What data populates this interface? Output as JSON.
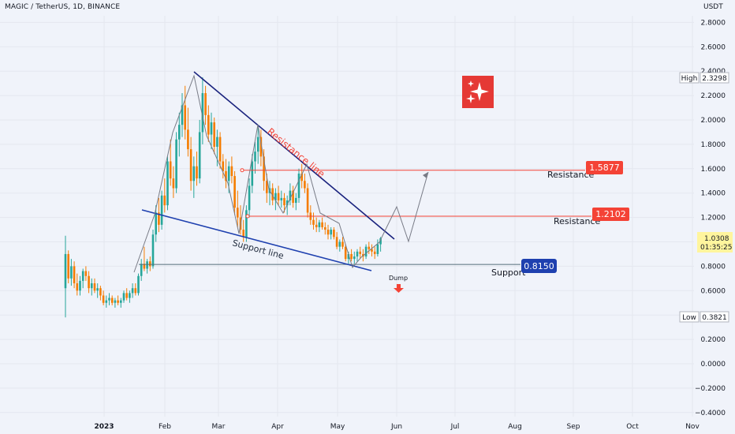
{
  "header": {
    "title": "MAGIC / TetherUS, 1D, BINANCE",
    "currency": "USDT"
  },
  "colors": {
    "background": "#f0f3fa",
    "up": "#26a69a",
    "down": "#f57c00",
    "resistance": "#f44336",
    "support": "#1e40af",
    "trendline": "#1a237e",
    "logo": "#e53935"
  },
  "icons": {
    "logo": "sparkle-icon",
    "dump_arrow": "arrow-down-icon"
  },
  "chart_data": {
    "type": "candlestick",
    "ylim": [
      -0.4,
      2.9
    ],
    "y_ticks": [
      "2.8000",
      "2.6000",
      "2.4000",
      "2.2000",
      "2.0000",
      "1.8000",
      "1.6000",
      "1.4000",
      "1.2000",
      "1.0000",
      "0.8000",
      "0.6000",
      "0.4000",
      "0.2000",
      "0.0000",
      "−0.2000",
      "−0.4000"
    ],
    "x_ticks": [
      "2023",
      "Feb",
      "Mar",
      "Apr",
      "May",
      "Jun",
      "Jul",
      "Aug",
      "Sep",
      "Oct",
      "Nov"
    ],
    "price_markers": {
      "high": {
        "label": "High",
        "value": "2.3298"
      },
      "low": {
        "label": "Low",
        "value": "0.3821"
      },
      "last": {
        "value": "1.0308",
        "countdown": "01:35:25"
      }
    },
    "levels": [
      {
        "name": "Resistance",
        "value": 1.5877,
        "label": "1.5877"
      },
      {
        "name": "Resistance",
        "value": 1.2102,
        "label": "1.2102"
      },
      {
        "name": "Support",
        "value": 0.815,
        "label": "0.8150"
      }
    ],
    "annotations": {
      "resistance_line": "Resistance line",
      "support_line": "Support line",
      "dump": "Dump"
    },
    "ohlc": [
      [
        0.62,
        1.05,
        0.38,
        0.9
      ],
      [
        0.9,
        0.93,
        0.66,
        0.7
      ],
      [
        0.7,
        0.86,
        0.64,
        0.8
      ],
      [
        0.8,
        0.84,
        0.62,
        0.66
      ],
      [
        0.66,
        0.74,
        0.56,
        0.6
      ],
      [
        0.6,
        0.72,
        0.56,
        0.68
      ],
      [
        0.68,
        0.78,
        0.62,
        0.76
      ],
      [
        0.76,
        0.8,
        0.68,
        0.72
      ],
      [
        0.72,
        0.76,
        0.58,
        0.62
      ],
      [
        0.62,
        0.7,
        0.56,
        0.66
      ],
      [
        0.66,
        0.7,
        0.58,
        0.6
      ],
      [
        0.6,
        0.66,
        0.54,
        0.62
      ],
      [
        0.62,
        0.64,
        0.52,
        0.56
      ],
      [
        0.56,
        0.6,
        0.48,
        0.5
      ],
      [
        0.5,
        0.56,
        0.46,
        0.52
      ],
      [
        0.52,
        0.58,
        0.48,
        0.54
      ],
      [
        0.54,
        0.56,
        0.48,
        0.5
      ],
      [
        0.5,
        0.54,
        0.46,
        0.52
      ],
      [
        0.52,
        0.56,
        0.48,
        0.5
      ],
      [
        0.5,
        0.54,
        0.46,
        0.52
      ],
      [
        0.52,
        0.6,
        0.5,
        0.58
      ],
      [
        0.58,
        0.62,
        0.52,
        0.54
      ],
      [
        0.54,
        0.6,
        0.5,
        0.58
      ],
      [
        0.58,
        0.66,
        0.54,
        0.62
      ],
      [
        0.62,
        0.66,
        0.56,
        0.58
      ],
      [
        0.58,
        0.74,
        0.56,
        0.72
      ],
      [
        0.72,
        0.86,
        0.68,
        0.82
      ],
      [
        0.82,
        0.96,
        0.76,
        0.78
      ],
      [
        0.78,
        0.86,
        0.74,
        0.84
      ],
      [
        0.84,
        0.88,
        0.76,
        0.8
      ],
      [
        0.8,
        1.1,
        0.78,
        1.06
      ],
      [
        1.06,
        1.3,
        1.0,
        1.24
      ],
      [
        1.24,
        1.36,
        1.08,
        1.14
      ],
      [
        1.14,
        1.42,
        1.1,
        1.38
      ],
      [
        1.38,
        1.52,
        1.24,
        1.3
      ],
      [
        1.3,
        1.7,
        1.26,
        1.66
      ],
      [
        1.66,
        1.84,
        1.46,
        1.52
      ],
      [
        1.52,
        1.62,
        1.36,
        1.44
      ],
      [
        1.44,
        1.9,
        1.4,
        1.84
      ],
      [
        1.84,
        2.06,
        1.7,
        1.96
      ],
      [
        1.96,
        2.22,
        1.86,
        2.12
      ],
      [
        2.12,
        2.28,
        1.84,
        1.92
      ],
      [
        1.92,
        2.1,
        1.7,
        1.76
      ],
      [
        1.76,
        1.86,
        1.42,
        1.5
      ],
      [
        1.5,
        1.7,
        1.36,
        1.62
      ],
      [
        1.62,
        1.74,
        1.46,
        1.52
      ],
      [
        1.52,
        2.0,
        1.48,
        1.9
      ],
      [
        1.9,
        2.35,
        1.8,
        2.22
      ],
      [
        2.22,
        2.28,
        1.96,
        2.04
      ],
      [
        2.04,
        2.12,
        1.82,
        1.88
      ],
      [
        1.88,
        2.06,
        1.76,
        1.98
      ],
      [
        1.98,
        2.02,
        1.72,
        1.78
      ],
      [
        1.78,
        1.92,
        1.62,
        1.86
      ],
      [
        1.86,
        1.9,
        1.6,
        1.66
      ],
      [
        1.66,
        1.72,
        1.52,
        1.58
      ],
      [
        1.58,
        1.68,
        1.44,
        1.5
      ],
      [
        1.5,
        1.66,
        1.4,
        1.62
      ],
      [
        1.62,
        1.7,
        1.48,
        1.54
      ],
      [
        1.54,
        1.58,
        1.22,
        1.28
      ],
      [
        1.28,
        1.42,
        1.12,
        1.2
      ],
      [
        1.2,
        1.3,
        1.06,
        1.1
      ],
      [
        1.1,
        1.18,
        1.0,
        1.04
      ],
      [
        1.04,
        1.3,
        1.0,
        1.26
      ],
      [
        1.26,
        1.52,
        1.2,
        1.46
      ],
      [
        1.46,
        1.72,
        1.4,
        1.66
      ],
      [
        1.66,
        1.82,
        1.56,
        1.74
      ],
      [
        1.74,
        1.96,
        1.64,
        1.86
      ],
      [
        1.86,
        1.92,
        1.62,
        1.7
      ],
      [
        1.7,
        1.76,
        1.42,
        1.5
      ],
      [
        1.5,
        1.56,
        1.32,
        1.4
      ],
      [
        1.4,
        1.5,
        1.3,
        1.44
      ],
      [
        1.44,
        1.48,
        1.3,
        1.34
      ],
      [
        1.34,
        1.44,
        1.26,
        1.4
      ],
      [
        1.4,
        1.46,
        1.3,
        1.34
      ],
      [
        1.34,
        1.42,
        1.28,
        1.36
      ],
      [
        1.36,
        1.4,
        1.24,
        1.3
      ],
      [
        1.3,
        1.38,
        1.22,
        1.34
      ],
      [
        1.34,
        1.48,
        1.3,
        1.42
      ],
      [
        1.42,
        1.46,
        1.28,
        1.32
      ],
      [
        1.32,
        1.4,
        1.26,
        1.36
      ],
      [
        1.36,
        1.6,
        1.32,
        1.56
      ],
      [
        1.56,
        1.64,
        1.44,
        1.5
      ],
      [
        1.5,
        1.56,
        1.4,
        1.44
      ],
      [
        1.44,
        1.48,
        1.2,
        1.24
      ],
      [
        1.24,
        1.3,
        1.14,
        1.18
      ],
      [
        1.18,
        1.24,
        1.1,
        1.14
      ],
      [
        1.14,
        1.2,
        1.08,
        1.12
      ],
      [
        1.12,
        1.18,
        1.08,
        1.16
      ],
      [
        1.16,
        1.2,
        1.1,
        1.12
      ],
      [
        1.12,
        1.16,
        1.06,
        1.1
      ],
      [
        1.1,
        1.14,
        1.02,
        1.06
      ],
      [
        1.06,
        1.12,
        1.02,
        1.1
      ],
      [
        1.1,
        1.12,
        1.02,
        1.04
      ],
      [
        1.04,
        1.08,
        0.94,
        0.96
      ],
      [
        0.96,
        1.02,
        0.92,
        1.0
      ],
      [
        1.0,
        1.04,
        0.94,
        0.96
      ],
      [
        0.96,
        0.98,
        0.84,
        0.86
      ],
      [
        0.86,
        0.92,
        0.82,
        0.9
      ],
      [
        0.9,
        0.94,
        0.84,
        0.86
      ],
      [
        0.86,
        0.92,
        0.82,
        0.88
      ],
      [
        0.88,
        0.94,
        0.84,
        0.92
      ],
      [
        0.92,
        0.96,
        0.86,
        0.9
      ],
      [
        0.9,
        0.94,
        0.84,
        0.88
      ],
      [
        0.88,
        0.98,
        0.86,
        0.96
      ],
      [
        0.96,
        1.0,
        0.9,
        0.94
      ],
      [
        0.94,
        0.98,
        0.88,
        0.92
      ],
      [
        0.92,
        0.96,
        0.86,
        0.9
      ],
      [
        0.9,
        1.02,
        0.88,
        0.98
      ],
      [
        0.98,
        1.04,
        0.92,
        1.03
      ]
    ]
  }
}
